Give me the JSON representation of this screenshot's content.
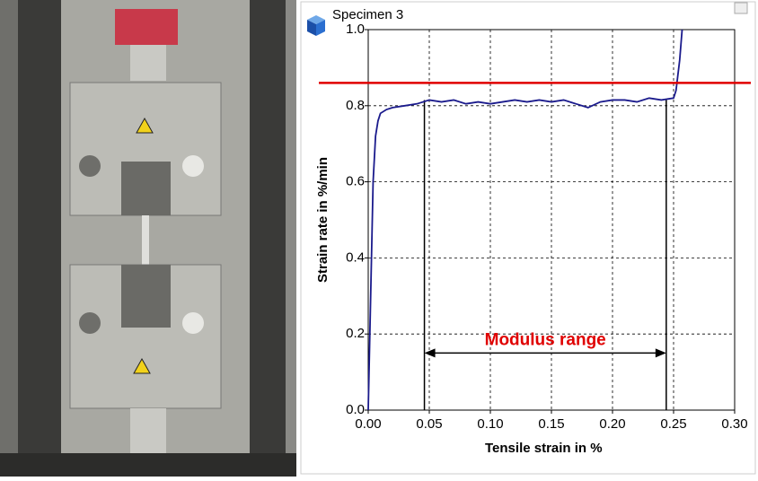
{
  "chart_data": {
    "type": "line",
    "title": "Specimen 3",
    "x_label": "Tensile strain in %",
    "y_label": "Strain rate in %/min",
    "x": [
      0,
      0.002,
      0.004,
      0.006,
      0.008,
      0.01,
      0.015,
      0.02,
      0.03,
      0.04,
      0.05,
      0.06,
      0.07,
      0.08,
      0.09,
      0.1,
      0.11,
      0.12,
      0.13,
      0.14,
      0.15,
      0.16,
      0.17,
      0.18,
      0.19,
      0.2,
      0.21,
      0.22,
      0.23,
      0.24,
      0.25,
      0.252,
      0.255,
      0.257
    ],
    "values": [
      0,
      0.3,
      0.6,
      0.72,
      0.76,
      0.78,
      0.79,
      0.795,
      0.8,
      0.805,
      0.815,
      0.81,
      0.815,
      0.805,
      0.81,
      0.805,
      0.81,
      0.815,
      0.81,
      0.815,
      0.81,
      0.815,
      0.805,
      0.795,
      0.81,
      0.815,
      0.815,
      0.81,
      0.82,
      0.815,
      0.82,
      0.84,
      0.92,
      1.0
    ],
    "color": "#1a1a8c",
    "xlim": [
      0,
      0.3
    ],
    "xticks": [
      {
        "value": 0,
        "label": "0.00"
      },
      0.05,
      {
        "value": 0.1,
        "label": "0.10"
      },
      0.15,
      {
        "value": 0.2,
        "label": "0.20"
      },
      0.25,
      {
        "value": 0.3,
        "label": "0.30"
      }
    ],
    "ylim": [
      0,
      1
    ],
    "yticks": [
      {
        "value": 0,
        "label": "0.0"
      },
      0.2,
      0.4,
      0.6,
      0.8,
      {
        "value": 1,
        "label": "1.0"
      }
    ],
    "grid": true,
    "hline": {
      "value": 0.86,
      "color": "#e00000"
    },
    "vlines": [
      0.046,
      0.244
    ],
    "annotation": {
      "text": "Modulus range",
      "x": [
        0.046,
        0.244
      ],
      "y": 0.15,
      "color": "#e00000"
    }
  }
}
